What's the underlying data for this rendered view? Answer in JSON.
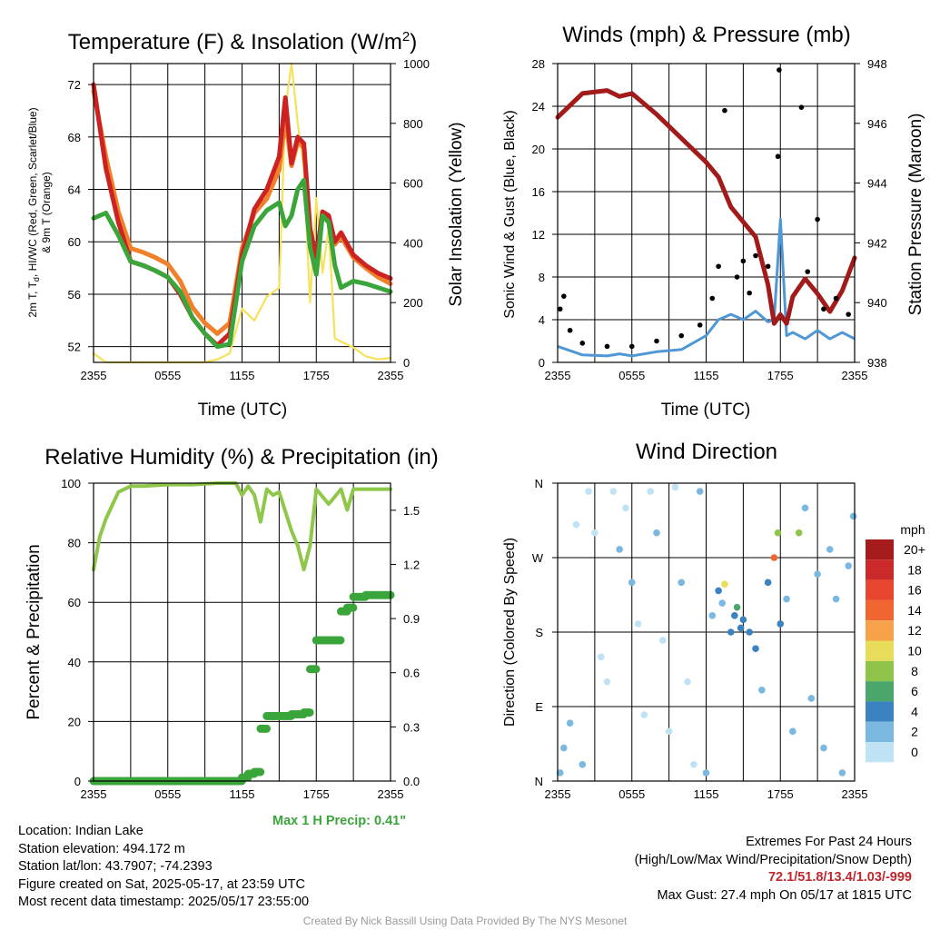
{
  "charts": {
    "temp": {
      "title_main": "Temperature (F) & Insolation (W/m",
      "title_sup": "2",
      "title_end": ")",
      "ylabel_left_line1": "2m T, T",
      "ylabel_left_sub": "d",
      "ylabel_left_rest": ", HI/WC (Red, Green, Scarlet/Blue)",
      "ylabel_left_line2": "& 9m T (Orange)",
      "ylabel_right": "Solar Insolation (Yellow)",
      "xlabel": "Time (UTC)"
    },
    "wind": {
      "title": "Winds (mph) & Pressure (mb)",
      "ylabel_left": "Sonic Wind & Gust (Blue, Black)",
      "ylabel_right": "Station Pressure (Maroon)",
      "xlabel": "Time (UTC)"
    },
    "rh": {
      "title": "Relative Humidity (%) & Precipitation (in)",
      "ylabel_left": "Percent & Precipitation",
      "max_precip_label": "Max 1 H Precip: 0.41\""
    },
    "dir": {
      "title": "Wind Direction",
      "ylabel_left": "Direction (Colored By Speed)",
      "colorbar_title": "mph"
    }
  },
  "footer": {
    "location": "Location: Indian Lake",
    "elevation": "Station elevation: 494.172 m",
    "latlon": "Station lat/lon: 43.7907; -74.2393",
    "created": "Figure created on Sat, 2025-05-17, at 23:59 UTC",
    "recent": "Most recent data timestamp: 2025/05/17 23:55:00",
    "extremes_title": "Extremes For Past 24 Hours",
    "extremes_sub": "(High/Low/Max Wind/Precipitation/Snow Depth)",
    "extremes_values": "72.1/51.8/13.4/1.03/-999",
    "max_gust": "Max Gust: 27.4 mph On 05/17 at 1815 UTC",
    "credit": "Created By Nick Bassill Using Data Provided By The NYS Mesonet"
  },
  "chart_data": [
    {
      "type": "line",
      "title": "Temperature (F) & Insolation (W/m2)",
      "xlabel": "Time (UTC)",
      "ylabel": "2m T, Td, HI/WC (Red, Green, Scarlet/Blue) & 9m T (Orange)",
      "y2label": "Solar Insolation (Yellow)",
      "x_ticks": [
        "2355",
        "0555",
        "1155",
        "1755",
        "2355"
      ],
      "ylim": [
        50.8,
        73.6
      ],
      "y_ticks": [
        52,
        56,
        60,
        64,
        68,
        72
      ],
      "y2lim": [
        0,
        1000
      ],
      "y2_ticks": [
        0,
        200,
        400,
        600,
        800,
        1000
      ],
      "x_hours": [
        0,
        1,
        2,
        3,
        4,
        5,
        6,
        7,
        8,
        9,
        10,
        11,
        12,
        13,
        14,
        15,
        15.5,
        16,
        16.5,
        17,
        17.5,
        18,
        18.5,
        19,
        19.5,
        20,
        21,
        22,
        23,
        24
      ],
      "series": [
        {
          "name": "2m T",
          "color": "#cc2222",
          "axis": "left",
          "values": [
            72,
            65.6,
            61.5,
            58.5,
            58.2,
            57.8,
            57.3,
            56.0,
            54.2,
            53.0,
            52.1,
            53.0,
            59.0,
            62.5,
            64.0,
            66.5,
            71.0,
            66.0,
            68.0,
            67.5,
            61.0,
            58.8,
            62.3,
            62.0,
            60.0,
            60.7,
            59.0,
            58.2,
            57.6,
            57.2
          ]
        },
        {
          "name": "9m T",
          "color": "#f0802a",
          "axis": "left",
          "values": [
            71.5,
            66.5,
            62.3,
            59.5,
            59.2,
            58.8,
            58.3,
            57.0,
            55.0,
            53.8,
            53.0,
            53.8,
            59.5,
            62.2,
            63.3,
            65.5,
            69.5,
            65.8,
            67.6,
            67.2,
            60.8,
            58.8,
            62.0,
            61.5,
            59.8,
            60.4,
            58.8,
            58.0,
            57.3,
            56.8
          ]
        },
        {
          "name": "Td",
          "color": "#3aa53a",
          "axis": "left",
          "values": [
            61.8,
            62.2,
            60.5,
            58.5,
            58.2,
            57.8,
            57.3,
            56.2,
            54.2,
            53.0,
            52.0,
            52.2,
            58.5,
            61.2,
            62.4,
            63.0,
            61.2,
            62.0,
            64.0,
            64.7,
            59.6,
            57.5,
            62.0,
            61.5,
            58.2,
            56.5,
            57.0,
            56.8,
            56.5,
            56.2
          ]
        },
        {
          "name": "Solar Insolation",
          "color": "#f7e15a",
          "axis": "right",
          "values": [
            30,
            0,
            0,
            0,
            0,
            0,
            0,
            0,
            0,
            0,
            10,
            30,
            180,
            140,
            220,
            250,
            850,
            1000,
            800,
            650,
            200,
            550,
            300,
            450,
            80,
            70,
            50,
            20,
            10,
            15
          ]
        }
      ]
    },
    {
      "type": "line",
      "title": "Winds (mph) & Pressure (mb)",
      "xlabel": "Time (UTC)",
      "ylabel": "Sonic Wind & Gust (Blue, Black)",
      "y2label": "Station Pressure (Maroon)",
      "x_ticks": [
        "2355",
        "0555",
        "1155",
        "1755",
        "2355"
      ],
      "ylim": [
        0,
        28
      ],
      "y_ticks": [
        0,
        4,
        8,
        12,
        16,
        20,
        24,
        28
      ],
      "y2lim": [
        938,
        948
      ],
      "y2_ticks": [
        938,
        940,
        942,
        944,
        946,
        948
      ],
      "x_hours": [
        0,
        2,
        4,
        5,
        6,
        8,
        10,
        12,
        13,
        14,
        15,
        16,
        17,
        17.5,
        18,
        18.5,
        19,
        20,
        21,
        22,
        23,
        24
      ],
      "series": [
        {
          "name": "Station Pressure",
          "color": "#a31a1a",
          "axis": "right",
          "values": [
            946.2,
            947.0,
            947.1,
            946.9,
            947.0,
            946.3,
            945.5,
            944.7,
            944.2,
            943.2,
            942.7,
            942.2,
            940.6,
            939.3,
            939.6,
            939.3,
            940.2,
            940.8,
            940.3,
            939.7,
            940.4,
            941.5
          ]
        },
        {
          "name": "Sonic Wind",
          "color": "#4f97d5",
          "axis": "left",
          "values": [
            1.5,
            0.7,
            0.6,
            0.8,
            0.6,
            1.0,
            1.2,
            2.5,
            4.0,
            4.5,
            4.0,
            4.8,
            3.8,
            4.0,
            13.4,
            2.5,
            2.8,
            2.2,
            3.0,
            2.2,
            2.8,
            2.2
          ]
        },
        {
          "name": "Gust",
          "color": "#000000",
          "axis": "left",
          "points": [
            [
              0.2,
              5.0
            ],
            [
              0.5,
              6.2
            ],
            [
              1,
              3.0
            ],
            [
              2,
              1.8
            ],
            [
              4,
              1.5
            ],
            [
              6,
              1.5
            ],
            [
              8,
              2.0
            ],
            [
              10,
              2.5
            ],
            [
              11.5,
              3.5
            ],
            [
              12.5,
              6.0
            ],
            [
              13,
              9.0
            ],
            [
              13.5,
              23.6
            ],
            [
              14.5,
              8.0
            ],
            [
              15,
              9.5
            ],
            [
              15.5,
              6.5
            ],
            [
              16,
              10.0
            ],
            [
              17,
              9.0
            ],
            [
              17.8,
              19.3
            ],
            [
              17.9,
              27.4
            ],
            [
              19.7,
              23.9
            ],
            [
              20.2,
              8.5
            ],
            [
              21,
              13.4
            ],
            [
              21.5,
              5.0
            ],
            [
              22.5,
              6.0
            ],
            [
              23.5,
              4.5
            ]
          ]
        }
      ]
    },
    {
      "type": "line",
      "title": "Relative Humidity (%) & Precipitation (in)",
      "xlabel": "",
      "ylabel": "Percent & Precipitation",
      "x_ticks": [
        "2355",
        "0555",
        "1155",
        "1755",
        "2355"
      ],
      "ylim": [
        0,
        100
      ],
      "y_ticks": [
        0,
        20,
        40,
        60,
        80,
        100
      ],
      "y2lim": [
        0,
        1.65
      ],
      "y2_ticks": [
        0.0,
        0.3,
        0.6,
        0.9,
        1.2,
        1.5
      ],
      "y2_tick_labels": [
        "0.0",
        "0.3",
        "0.6",
        "0.9",
        "1.2",
        "1.5"
      ],
      "x_hours": [
        0,
        0.5,
        1,
        2,
        3,
        4,
        6,
        8,
        10,
        11.5,
        12,
        12.5,
        13,
        13.5,
        14,
        14.5,
        15,
        16,
        16.5,
        17,
        17.5,
        18,
        19,
        20,
        20.5,
        21,
        22,
        23,
        24
      ],
      "series": [
        {
          "name": "RH",
          "color": "#8fc74a",
          "axis": "left",
          "values": [
            71,
            82,
            88,
            97,
            99,
            99,
            99.5,
            99.5,
            100,
            100,
            96,
            99,
            96,
            87,
            98,
            96,
            97,
            84,
            79,
            71,
            79,
            98,
            93,
            98,
            91,
            98,
            98,
            98,
            98
          ]
        },
        {
          "name": "Precipitation",
          "color": "#3aa53a",
          "axis": "right",
          "values": [
            0,
            0,
            0,
            0,
            0,
            0,
            0,
            0,
            0,
            0,
            0.02,
            0.04,
            0.05,
            0.29,
            0.36,
            0.36,
            0.36,
            0.37,
            0.37,
            0.38,
            0.62,
            0.78,
            0.78,
            0.94,
            0.96,
            1.02,
            1.03,
            1.03,
            1.03
          ]
        }
      ]
    },
    {
      "type": "scatter",
      "title": "Wind Direction",
      "xlabel": "",
      "ylabel": "Direction (Colored By Speed)",
      "x_ticks": [
        "2355",
        "0555",
        "1155",
        "1755",
        "2355"
      ],
      "y_tick_labels": [
        "N",
        "E",
        "S",
        "W",
        "N"
      ],
      "ylim": [
        0,
        360
      ],
      "colorbar": {
        "title": "mph",
        "labels": [
          "20+",
          "18",
          "16",
          "14",
          "12",
          "10",
          "8",
          "6",
          "4",
          "2",
          "0"
        ],
        "colors": [
          "#a61c1c",
          "#cc2a2a",
          "#e8452e",
          "#f06530",
          "#f6a24a",
          "#e8dd5a",
          "#8fc44a",
          "#4aa66a",
          "#3a82c0",
          "#7ab8e0",
          "#bfe3f5"
        ]
      },
      "points": [
        [
          0.2,
          10,
          1
        ],
        [
          0.5,
          40,
          1
        ],
        [
          1,
          70,
          1
        ],
        [
          1.5,
          310,
          0
        ],
        [
          2,
          20,
          1
        ],
        [
          2.5,
          350,
          0
        ],
        [
          3,
          300,
          0
        ],
        [
          3.5,
          150,
          0
        ],
        [
          4,
          120,
          0
        ],
        [
          4.5,
          350,
          0
        ],
        [
          5,
          280,
          1
        ],
        [
          5.5,
          330,
          0
        ],
        [
          6,
          240,
          1
        ],
        [
          6.5,
          190,
          0
        ],
        [
          7,
          80,
          0
        ],
        [
          7.5,
          350,
          0
        ],
        [
          8,
          300,
          1
        ],
        [
          8.5,
          170,
          0
        ],
        [
          9,
          60,
          0
        ],
        [
          9.5,
          355,
          0
        ],
        [
          10,
          240,
          1
        ],
        [
          10.5,
          120,
          0
        ],
        [
          11,
          20,
          0
        ],
        [
          11.5,
          350,
          1
        ],
        [
          12,
          10,
          1
        ],
        [
          12.5,
          200,
          2
        ],
        [
          13,
          230,
          3
        ],
        [
          13.3,
          215,
          2
        ],
        [
          13.5,
          238,
          10
        ],
        [
          14,
          180,
          3
        ],
        [
          14.3,
          200,
          4
        ],
        [
          14.5,
          210,
          6
        ],
        [
          14.8,
          185,
          4
        ],
        [
          15,
          195,
          3
        ],
        [
          15.5,
          180,
          4
        ],
        [
          16,
          160,
          3
        ],
        [
          16.5,
          110,
          2
        ],
        [
          17,
          240,
          4
        ],
        [
          17.5,
          270,
          13
        ],
        [
          17.8,
          300,
          7
        ],
        [
          18,
          190,
          3
        ],
        [
          18.5,
          220,
          2
        ],
        [
          19,
          60,
          1
        ],
        [
          19.5,
          300,
          7
        ],
        [
          20,
          330,
          2
        ],
        [
          20.5,
          100,
          1
        ],
        [
          21,
          250,
          1
        ],
        [
          21.5,
          40,
          1
        ],
        [
          22,
          280,
          2
        ],
        [
          22.5,
          220,
          1
        ],
        [
          23,
          10,
          1
        ],
        [
          23.5,
          260,
          2
        ],
        [
          23.9,
          320,
          1
        ]
      ]
    }
  ]
}
